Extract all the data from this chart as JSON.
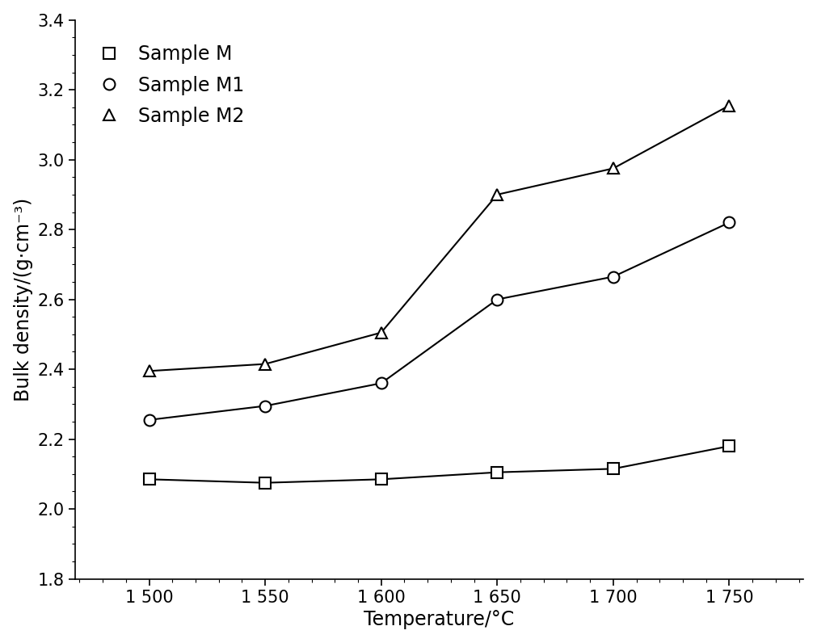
{
  "temperatures": [
    1500,
    1550,
    1600,
    1650,
    1700,
    1750
  ],
  "x_tick_labels": [
    "1 500",
    "1 550",
    "1 600",
    "1 650",
    "1 700",
    "1 750"
  ],
  "sample_M": [
    2.085,
    2.075,
    2.085,
    2.105,
    2.115,
    2.18
  ],
  "sample_M1": [
    2.255,
    2.295,
    2.36,
    2.6,
    2.665,
    2.82
  ],
  "sample_M2": [
    2.395,
    2.415,
    2.505,
    2.9,
    2.975,
    3.155
  ],
  "ylim": [
    1.8,
    3.4
  ],
  "yticks": [
    1.8,
    2.0,
    2.2,
    2.4,
    2.6,
    2.8,
    3.0,
    3.2,
    3.4
  ],
  "xlabel": "Temperature/°C",
  "ylabel": "Bulk density/(g·cm⁻³)",
  "legend_labels": [
    "Sample M",
    "Sample M1",
    "Sample M2"
  ],
  "line_color": "#000000",
  "marker_M": "s",
  "marker_M1": "o",
  "marker_M2": "^",
  "marker_size": 10,
  "line_width": 1.5,
  "marker_face_color": "#ffffff",
  "marker_edge_color": "#000000",
  "marker_edge_width": 1.5,
  "font_size_labels": 17,
  "font_size_ticks": 15,
  "font_size_legend": 17,
  "background_color": "#ffffff",
  "xlim": [
    1468,
    1782
  ]
}
